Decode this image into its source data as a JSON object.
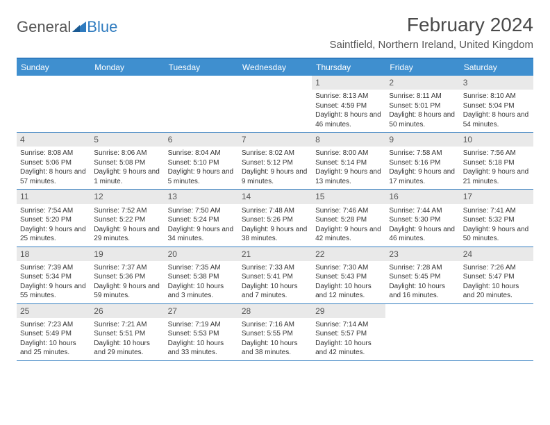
{
  "logo": {
    "text1": "General",
    "text2": "Blue"
  },
  "title": "February 2024",
  "location": "Saintfield, Northern Ireland, United Kingdom",
  "day_headers": [
    "Sunday",
    "Monday",
    "Tuesday",
    "Wednesday",
    "Thursday",
    "Friday",
    "Saturday"
  ],
  "colors": {
    "header_bg": "#3f8fcf",
    "border": "#2f7bbf",
    "num_bg": "#e9e9e9"
  },
  "weeks": [
    [
      {
        "n": "",
        "sunrise": "",
        "sunset": "",
        "daylight": ""
      },
      {
        "n": "",
        "sunrise": "",
        "sunset": "",
        "daylight": ""
      },
      {
        "n": "",
        "sunrise": "",
        "sunset": "",
        "daylight": ""
      },
      {
        "n": "",
        "sunrise": "",
        "sunset": "",
        "daylight": ""
      },
      {
        "n": "1",
        "sunrise": "Sunrise: 8:13 AM",
        "sunset": "Sunset: 4:59 PM",
        "daylight": "Daylight: 8 hours and 46 minutes."
      },
      {
        "n": "2",
        "sunrise": "Sunrise: 8:11 AM",
        "sunset": "Sunset: 5:01 PM",
        "daylight": "Daylight: 8 hours and 50 minutes."
      },
      {
        "n": "3",
        "sunrise": "Sunrise: 8:10 AM",
        "sunset": "Sunset: 5:04 PM",
        "daylight": "Daylight: 8 hours and 54 minutes."
      }
    ],
    [
      {
        "n": "4",
        "sunrise": "Sunrise: 8:08 AM",
        "sunset": "Sunset: 5:06 PM",
        "daylight": "Daylight: 8 hours and 57 minutes."
      },
      {
        "n": "5",
        "sunrise": "Sunrise: 8:06 AM",
        "sunset": "Sunset: 5:08 PM",
        "daylight": "Daylight: 9 hours and 1 minute."
      },
      {
        "n": "6",
        "sunrise": "Sunrise: 8:04 AM",
        "sunset": "Sunset: 5:10 PM",
        "daylight": "Daylight: 9 hours and 5 minutes."
      },
      {
        "n": "7",
        "sunrise": "Sunrise: 8:02 AM",
        "sunset": "Sunset: 5:12 PM",
        "daylight": "Daylight: 9 hours and 9 minutes."
      },
      {
        "n": "8",
        "sunrise": "Sunrise: 8:00 AM",
        "sunset": "Sunset: 5:14 PM",
        "daylight": "Daylight: 9 hours and 13 minutes."
      },
      {
        "n": "9",
        "sunrise": "Sunrise: 7:58 AM",
        "sunset": "Sunset: 5:16 PM",
        "daylight": "Daylight: 9 hours and 17 minutes."
      },
      {
        "n": "10",
        "sunrise": "Sunrise: 7:56 AM",
        "sunset": "Sunset: 5:18 PM",
        "daylight": "Daylight: 9 hours and 21 minutes."
      }
    ],
    [
      {
        "n": "11",
        "sunrise": "Sunrise: 7:54 AM",
        "sunset": "Sunset: 5:20 PM",
        "daylight": "Daylight: 9 hours and 25 minutes."
      },
      {
        "n": "12",
        "sunrise": "Sunrise: 7:52 AM",
        "sunset": "Sunset: 5:22 PM",
        "daylight": "Daylight: 9 hours and 29 minutes."
      },
      {
        "n": "13",
        "sunrise": "Sunrise: 7:50 AM",
        "sunset": "Sunset: 5:24 PM",
        "daylight": "Daylight: 9 hours and 34 minutes."
      },
      {
        "n": "14",
        "sunrise": "Sunrise: 7:48 AM",
        "sunset": "Sunset: 5:26 PM",
        "daylight": "Daylight: 9 hours and 38 minutes."
      },
      {
        "n": "15",
        "sunrise": "Sunrise: 7:46 AM",
        "sunset": "Sunset: 5:28 PM",
        "daylight": "Daylight: 9 hours and 42 minutes."
      },
      {
        "n": "16",
        "sunrise": "Sunrise: 7:44 AM",
        "sunset": "Sunset: 5:30 PM",
        "daylight": "Daylight: 9 hours and 46 minutes."
      },
      {
        "n": "17",
        "sunrise": "Sunrise: 7:41 AM",
        "sunset": "Sunset: 5:32 PM",
        "daylight": "Daylight: 9 hours and 50 minutes."
      }
    ],
    [
      {
        "n": "18",
        "sunrise": "Sunrise: 7:39 AM",
        "sunset": "Sunset: 5:34 PM",
        "daylight": "Daylight: 9 hours and 55 minutes."
      },
      {
        "n": "19",
        "sunrise": "Sunrise: 7:37 AM",
        "sunset": "Sunset: 5:36 PM",
        "daylight": "Daylight: 9 hours and 59 minutes."
      },
      {
        "n": "20",
        "sunrise": "Sunrise: 7:35 AM",
        "sunset": "Sunset: 5:38 PM",
        "daylight": "Daylight: 10 hours and 3 minutes."
      },
      {
        "n": "21",
        "sunrise": "Sunrise: 7:33 AM",
        "sunset": "Sunset: 5:41 PM",
        "daylight": "Daylight: 10 hours and 7 minutes."
      },
      {
        "n": "22",
        "sunrise": "Sunrise: 7:30 AM",
        "sunset": "Sunset: 5:43 PM",
        "daylight": "Daylight: 10 hours and 12 minutes."
      },
      {
        "n": "23",
        "sunrise": "Sunrise: 7:28 AM",
        "sunset": "Sunset: 5:45 PM",
        "daylight": "Daylight: 10 hours and 16 minutes."
      },
      {
        "n": "24",
        "sunrise": "Sunrise: 7:26 AM",
        "sunset": "Sunset: 5:47 PM",
        "daylight": "Daylight: 10 hours and 20 minutes."
      }
    ],
    [
      {
        "n": "25",
        "sunrise": "Sunrise: 7:23 AM",
        "sunset": "Sunset: 5:49 PM",
        "daylight": "Daylight: 10 hours and 25 minutes."
      },
      {
        "n": "26",
        "sunrise": "Sunrise: 7:21 AM",
        "sunset": "Sunset: 5:51 PM",
        "daylight": "Daylight: 10 hours and 29 minutes."
      },
      {
        "n": "27",
        "sunrise": "Sunrise: 7:19 AM",
        "sunset": "Sunset: 5:53 PM",
        "daylight": "Daylight: 10 hours and 33 minutes."
      },
      {
        "n": "28",
        "sunrise": "Sunrise: 7:16 AM",
        "sunset": "Sunset: 5:55 PM",
        "daylight": "Daylight: 10 hours and 38 minutes."
      },
      {
        "n": "29",
        "sunrise": "Sunrise: 7:14 AM",
        "sunset": "Sunset: 5:57 PM",
        "daylight": "Daylight: 10 hours and 42 minutes."
      },
      {
        "n": "",
        "sunrise": "",
        "sunset": "",
        "daylight": ""
      },
      {
        "n": "",
        "sunrise": "",
        "sunset": "",
        "daylight": ""
      }
    ]
  ]
}
